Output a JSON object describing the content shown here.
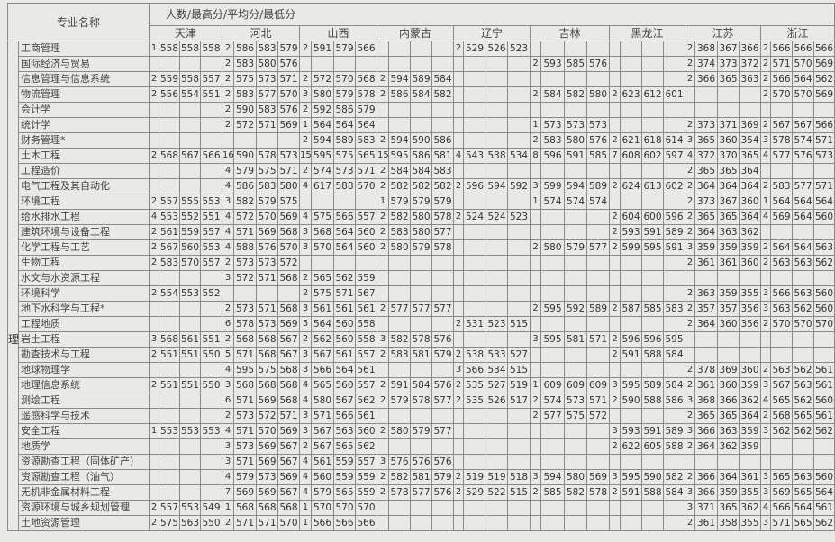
{
  "header": {
    "major_col": "专业名称",
    "metrics_label": "人数/最高分/平均分/最低分",
    "category_label": "理",
    "provinces": [
      "天津",
      "河北",
      "山西",
      "内蒙古",
      "辽宁",
      "吉林",
      "黑龙江",
      "江苏",
      "浙江"
    ]
  },
  "rows": [
    {
      "name": "工商管理",
      "scores": [
        [
          1,
          558,
          558,
          558
        ],
        [
          2,
          586,
          583,
          579
        ],
        [
          2,
          591,
          579,
          566
        ],
        null,
        [
          2,
          529,
          526,
          523
        ],
        null,
        null,
        [
          2,
          368,
          367,
          366
        ],
        [
          2,
          566,
          566,
          566
        ]
      ]
    },
    {
      "name": "国际经济与贸易",
      "scores": [
        null,
        [
          2,
          583,
          580,
          576
        ],
        null,
        null,
        null,
        [
          2,
          593,
          585,
          576
        ],
        null,
        [
          2,
          374,
          373,
          372
        ],
        [
          2,
          571,
          570,
          569
        ]
      ]
    },
    {
      "name": "信息管理与信息系统",
      "scores": [
        [
          2,
          559,
          558,
          557
        ],
        [
          2,
          575,
          573,
          571
        ],
        [
          2,
          572,
          570,
          568
        ],
        [
          2,
          594,
          589,
          584
        ],
        null,
        null,
        null,
        [
          2,
          366,
          365,
          363
        ],
        [
          2,
          566,
          564,
          562
        ]
      ]
    },
    {
      "name": "物流管理",
      "scores": [
        [
          2,
          556,
          554,
          551
        ],
        [
          2,
          583,
          577,
          570
        ],
        [
          3,
          580,
          579,
          578
        ],
        [
          2,
          586,
          584,
          582
        ],
        null,
        [
          2,
          584,
          582,
          580
        ],
        [
          2,
          623,
          612,
          601
        ],
        null,
        [
          2,
          570,
          570,
          569
        ]
      ]
    },
    {
      "name": "会计学",
      "scores": [
        null,
        [
          2,
          590,
          583,
          576
        ],
        [
          2,
          592,
          586,
          579
        ],
        null,
        null,
        null,
        null,
        null,
        null
      ]
    },
    {
      "name": "统计学",
      "scores": [
        null,
        [
          2,
          572,
          571,
          569
        ],
        [
          1,
          564,
          564,
          564
        ],
        null,
        null,
        [
          1,
          573,
          573,
          573
        ],
        null,
        [
          2,
          373,
          371,
          369
        ],
        [
          2,
          567,
          567,
          566
        ]
      ]
    },
    {
      "name": "财务管理*",
      "scores": [
        null,
        null,
        [
          2,
          594,
          589,
          583
        ],
        [
          2,
          594,
          590,
          586
        ],
        null,
        [
          2,
          583,
          580,
          576
        ],
        [
          2,
          621,
          618,
          614
        ],
        [
          3,
          365,
          360,
          354
        ],
        [
          3,
          578,
          574,
          571
        ]
      ]
    },
    {
      "name": "土木工程",
      "scores": [
        [
          2,
          568,
          567,
          566
        ],
        [
          16,
          590,
          578,
          573
        ],
        [
          15,
          595,
          575,
          565
        ],
        [
          15,
          595,
          586,
          581
        ],
        [
          4,
          543,
          538,
          534
        ],
        [
          8,
          596,
          591,
          585
        ],
        [
          7,
          608,
          602,
          597
        ],
        [
          4,
          372,
          370,
          365
        ],
        [
          4,
          577,
          576,
          573
        ]
      ]
    },
    {
      "name": "工程造价",
      "scores": [
        null,
        [
          4,
          579,
          575,
          571
        ],
        [
          2,
          574,
          573,
          571
        ],
        [
          2,
          584,
          584,
          583
        ],
        null,
        null,
        null,
        [
          2,
          365,
          365,
          364
        ],
        null
      ]
    },
    {
      "name": "电气工程及其自动化",
      "scores": [
        null,
        [
          4,
          586,
          583,
          580
        ],
        [
          4,
          617,
          588,
          570
        ],
        [
          2,
          582,
          582,
          582
        ],
        [
          2,
          596,
          594,
          592
        ],
        [
          3,
          599,
          594,
          589
        ],
        [
          2,
          624,
          613,
          602
        ],
        [
          2,
          364,
          364,
          364
        ],
        [
          2,
          583,
          577,
          571
        ]
      ]
    },
    {
      "name": "环境工程",
      "scores": [
        [
          2,
          557,
          555,
          553
        ],
        [
          3,
          582,
          579,
          575
        ],
        null,
        [
          1,
          579,
          579,
          579
        ],
        null,
        [
          1,
          574,
          574,
          574
        ],
        null,
        [
          2,
          373,
          367,
          360
        ],
        [
          1,
          564,
          564,
          564
        ]
      ]
    },
    {
      "name": "给水排水工程",
      "scores": [
        [
          4,
          553,
          552,
          551
        ],
        [
          4,
          572,
          570,
          569
        ],
        [
          4,
          575,
          566,
          557
        ],
        [
          2,
          582,
          580,
          578
        ],
        [
          2,
          524,
          524,
          523
        ],
        null,
        [
          2,
          604,
          600,
          596
        ],
        [
          2,
          365,
          365,
          364
        ],
        [
          4,
          569,
          564,
          560
        ]
      ]
    },
    {
      "name": "建筑环境与设备工程",
      "scores": [
        [
          2,
          561,
          559,
          557
        ],
        [
          4,
          571,
          569,
          568
        ],
        [
          3,
          568,
          564,
          560
        ],
        [
          2,
          583,
          580,
          577
        ],
        null,
        null,
        [
          2,
          593,
          591,
          589
        ],
        [
          2,
          364,
          363,
          362
        ],
        null
      ]
    },
    {
      "name": "化学工程与工艺",
      "scores": [
        [
          2,
          567,
          560,
          553
        ],
        [
          4,
          588,
          576,
          570
        ],
        [
          3,
          570,
          564,
          560
        ],
        [
          2,
          580,
          579,
          578
        ],
        null,
        [
          2,
          580,
          579,
          577
        ],
        [
          2,
          599,
          595,
          591
        ],
        [
          3,
          359,
          359,
          359
        ],
        [
          2,
          564,
          564,
          563
        ]
      ]
    },
    {
      "name": "生物工程",
      "scores": [
        [
          2,
          583,
          570,
          557
        ],
        [
          2,
          573,
          573,
          572
        ],
        null,
        null,
        null,
        null,
        null,
        [
          2,
          361,
          361,
          360
        ],
        [
          2,
          563,
          563,
          562
        ]
      ]
    },
    {
      "name": "水文与水资源工程",
      "scores": [
        null,
        [
          3,
          572,
          571,
          568
        ],
        [
          2,
          565,
          562,
          559
        ],
        null,
        null,
        null,
        null,
        null,
        null
      ]
    },
    {
      "name": "环境科学",
      "scores": [
        [
          2,
          554,
          553,
          552
        ],
        null,
        [
          2,
          575,
          571,
          567
        ],
        null,
        null,
        null,
        null,
        [
          2,
          363,
          359,
          355
        ],
        [
          3,
          566,
          563,
          560
        ]
      ]
    },
    {
      "name": "地下水科学与工程*",
      "scores": [
        null,
        [
          2,
          573,
          571,
          568
        ],
        [
          3,
          561,
          561,
          561
        ],
        [
          2,
          577,
          577,
          577
        ],
        null,
        [
          2,
          595,
          592,
          589
        ],
        [
          2,
          587,
          585,
          583
        ],
        [
          2,
          357,
          357,
          356
        ],
        [
          3,
          563,
          562,
          560
        ]
      ]
    },
    {
      "name": "工程地质",
      "scores": [
        null,
        [
          6,
          578,
          573,
          569
        ],
        [
          5,
          564,
          560,
          558
        ],
        null,
        [
          2,
          531,
          523,
          515
        ],
        null,
        null,
        [
          2,
          364,
          360,
          356
        ],
        [
          2,
          570,
          570,
          570
        ]
      ]
    },
    {
      "name": "岩土工程",
      "scores": [
        [
          3,
          568,
          561,
          551
        ],
        [
          2,
          568,
          568,
          567
        ],
        [
          2,
          562,
          560,
          558
        ],
        [
          3,
          582,
          578,
          576
        ],
        null,
        [
          3,
          595,
          581,
          571
        ],
        [
          2,
          596,
          596,
          595
        ],
        null,
        null
      ]
    },
    {
      "name": "勘查技术与工程",
      "scores": [
        [
          2,
          551,
          551,
          550
        ],
        [
          5,
          571,
          568,
          567
        ],
        [
          3,
          567,
          561,
          557
        ],
        [
          2,
          583,
          581,
          579
        ],
        [
          2,
          538,
          533,
          527
        ],
        null,
        [
          2,
          591,
          588,
          584
        ],
        null,
        null
      ]
    },
    {
      "name": "地球物理学",
      "scores": [
        null,
        [
          4,
          595,
          575,
          568
        ],
        [
          3,
          566,
          564,
          561
        ],
        null,
        [
          3,
          566,
          534,
          515
        ],
        null,
        null,
        [
          2,
          378,
          369,
          360
        ],
        [
          2,
          563,
          562,
          561
        ]
      ]
    },
    {
      "name": "地理信息系统",
      "scores": [
        [
          2,
          551,
          551,
          550
        ],
        [
          3,
          568,
          568,
          568
        ],
        [
          4,
          565,
          560,
          557
        ],
        [
          2,
          591,
          584,
          576
        ],
        [
          2,
          535,
          527,
          519
        ],
        [
          1,
          609,
          609,
          609
        ],
        [
          3,
          595,
          589,
          584
        ],
        [
          2,
          361,
          360,
          359
        ],
        [
          3,
          567,
          563,
          561
        ]
      ]
    },
    {
      "name": "测绘工程",
      "scores": [
        null,
        [
          6,
          571,
          569,
          568
        ],
        [
          4,
          580,
          567,
          562
        ],
        [
          2,
          579,
          578,
          577
        ],
        [
          2,
          535,
          526,
          517
        ],
        [
          2,
          574,
          573,
          571
        ],
        [
          2,
          590,
          588,
          586
        ],
        [
          3,
          368,
          366,
          362
        ],
        [
          4,
          565,
          562,
          560
        ]
      ]
    },
    {
      "name": "遥感科学与技术",
      "scores": [
        null,
        [
          2,
          573,
          572,
          571
        ],
        [
          3,
          571,
          566,
          561
        ],
        null,
        null,
        [
          2,
          577,
          575,
          572
        ],
        null,
        [
          2,
          365,
          365,
          364
        ],
        [
          2,
          568,
          565,
          561
        ]
      ]
    },
    {
      "name": "安全工程",
      "scores": [
        [
          1,
          553,
          553,
          553
        ],
        [
          4,
          571,
          570,
          569
        ],
        [
          3,
          567,
          563,
          560
        ],
        [
          2,
          580,
          579,
          577
        ],
        null,
        null,
        [
          3,
          593,
          591,
          589
        ],
        [
          3,
          366,
          363,
          359
        ],
        [
          3,
          562,
          562,
          562
        ]
      ]
    },
    {
      "name": "地质学",
      "scores": [
        null,
        [
          3,
          573,
          569,
          567
        ],
        [
          2,
          567,
          565,
          562
        ],
        null,
        null,
        null,
        [
          2,
          622,
          605,
          588
        ],
        [
          2,
          364,
          362,
          359
        ],
        null
      ]
    },
    {
      "name": "资源勘查工程（固体矿产）",
      "scores": [
        null,
        [
          3,
          571,
          569,
          567
        ],
        [
          4,
          561,
          559,
          557
        ],
        [
          3,
          576,
          576,
          576
        ],
        null,
        null,
        null,
        null,
        null
      ]
    },
    {
      "name": "资源勘查工程（油气）",
      "scores": [
        null,
        [
          4,
          579,
          573,
          569
        ],
        [
          4,
          560,
          559,
          559
        ],
        [
          2,
          582,
          581,
          579
        ],
        [
          2,
          519,
          519,
          518
        ],
        [
          3,
          594,
          580,
          569
        ],
        [
          3,
          595,
          590,
          582
        ],
        [
          2,
          366,
          364,
          361
        ],
        [
          3,
          565,
          563,
          560
        ]
      ]
    },
    {
      "name": "无机非金属材料工程",
      "scores": [
        null,
        [
          7,
          569,
          569,
          567
        ],
        [
          4,
          579,
          565,
          559
        ],
        [
          2,
          578,
          577,
          576
        ],
        [
          2,
          529,
          522,
          515
        ],
        [
          2,
          585,
          582,
          578
        ],
        [
          2,
          591,
          588,
          584
        ],
        [
          3,
          366,
          359,
          355
        ],
        [
          3,
          569,
          565,
          564
        ]
      ]
    },
    {
      "name": "资源环境与城乡规划管理",
      "scores": [
        [
          2,
          557,
          553,
          549
        ],
        [
          1,
          568,
          568,
          568
        ],
        [
          1,
          570,
          570,
          570
        ],
        null,
        null,
        null,
        null,
        [
          3,
          371,
          365,
          362
        ],
        [
          4,
          566,
          564,
          561
        ]
      ]
    },
    {
      "name": "土地资源管理",
      "scores": [
        [
          2,
          575,
          563,
          550
        ],
        [
          2,
          571,
          571,
          570
        ],
        [
          1,
          566,
          566,
          566
        ],
        null,
        null,
        null,
        null,
        [
          2,
          361,
          358,
          355
        ],
        [
          3,
          571,
          565,
          562
        ]
      ]
    }
  ]
}
